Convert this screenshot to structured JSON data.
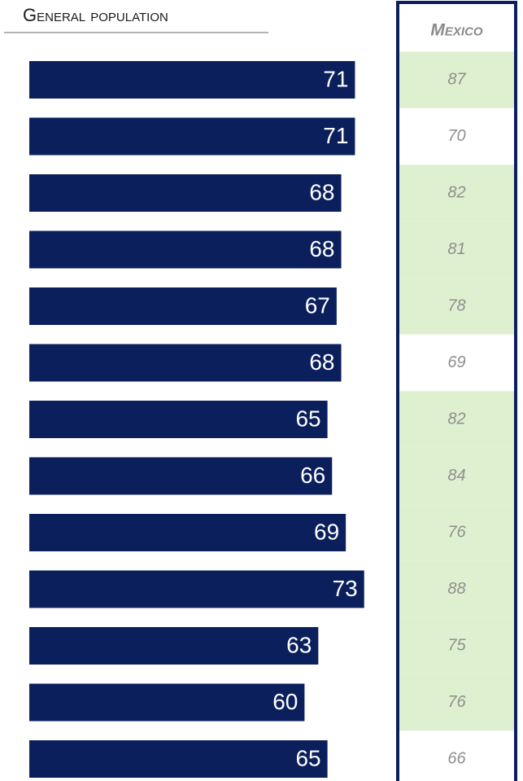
{
  "chart_data": {
    "type": "bar",
    "title": "General population",
    "values": [
      71,
      71,
      68,
      68,
      67,
      68,
      65,
      66,
      69,
      73,
      63,
      60,
      65
    ],
    "color": "#0b1f5c",
    "mexico": {
      "title": "Mexico",
      "values": [
        87,
        70,
        82,
        81,
        78,
        69,
        82,
        84,
        76,
        88,
        75,
        76,
        66
      ],
      "highlight": [
        true,
        false,
        true,
        true,
        true,
        false,
        true,
        true,
        true,
        true,
        true,
        true,
        false
      ],
      "highlight_color": "#dff0d0",
      "border_color": "#0b1f5c"
    }
  }
}
